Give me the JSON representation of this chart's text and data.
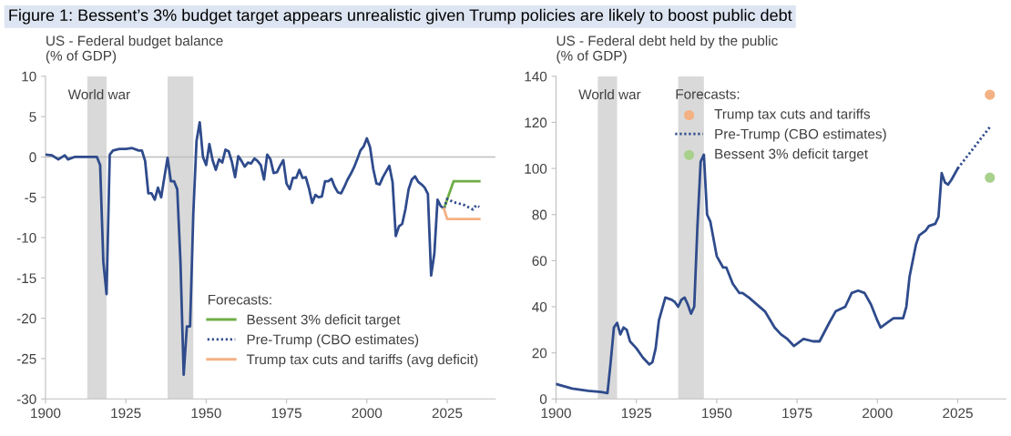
{
  "chart_data": [
    {
      "type": "line",
      "title": "Figure 1: Bessent’s 3% budget target appears unrealistic given Trump policies are likely to boost public debt",
      "ylabel": "US - Federal budget balance\n(% of GDP)",
      "legend_title": "Forecasts:",
      "legend": "bottom right",
      "xlim": [
        1900,
        2040
      ],
      "xticks": [
        1900,
        1925,
        1950,
        1975,
        2000,
        2025
      ],
      "ylim": [
        -30,
        10
      ],
      "yticks": [
        -30,
        -25,
        -20,
        -15,
        -10,
        -5,
        0,
        5,
        10
      ],
      "grid": false,
      "marker": "none",
      "bands": [
        {
          "axis": "x",
          "from": 1913,
          "to": 1919,
          "color": "#d9d9d9"
        },
        {
          "axis": "x",
          "from": 1938,
          "to": 1946,
          "color": "#d9d9d9"
        }
      ],
      "ref_lines": [
        {
          "axis": "y",
          "value": 0,
          "color": "#bfbfbf"
        }
      ],
      "annotations": [
        "World war"
      ],
      "series": [
        {
          "color": "#2f4b8c",
          "x": [
            1900,
            1902,
            1904,
            1906,
            1907,
            1909,
            1910,
            1916,
            1917,
            1918,
            1919,
            1920,
            1921,
            1923,
            1925,
            1927,
            1929,
            1930,
            1931,
            1932,
            1933,
            1934,
            1935,
            1936,
            1937,
            1938,
            1939,
            1940,
            1941,
            1942,
            1943,
            1944,
            1945,
            1946,
            1947,
            1948,
            1949,
            1950,
            1951,
            1952,
            1953,
            1954,
            1955,
            1956,
            1957,
            1958,
            1959,
            1960,
            1961,
            1962,
            1963,
            1964,
            1965,
            1966,
            1967,
            1968,
            1969,
            1970,
            1971,
            1972,
            1973,
            1974,
            1975,
            1976,
            1977,
            1978,
            1979,
            1980,
            1981,
            1982,
            1983,
            1984,
            1985,
            1986,
            1987,
            1988,
            1989,
            1990,
            1991,
            1992,
            1993,
            1994,
            1995,
            1996,
            1997,
            1998,
            1999,
            2000,
            2001,
            2002,
            2003,
            2004,
            2005,
            2006,
            2007,
            2008,
            2009,
            2010,
            2011,
            2012,
            2013,
            2014,
            2015,
            2016,
            2017,
            2018,
            2019,
            2020,
            2021,
            2022,
            2023,
            2024
          ],
          "values": [
            0.3,
            0.2,
            -0.3,
            0.2,
            -0.3,
            0,
            0,
            0,
            -1,
            -13,
            -17,
            0.3,
            0.8,
            1,
            1,
            1.1,
            0.8,
            0.8,
            -0.5,
            -4.5,
            -4.5,
            -5.3,
            -3.8,
            -5,
            -2.5,
            -0.1,
            -3,
            -3,
            -4,
            -13,
            -27,
            -21,
            -21,
            -7,
            2,
            4.3,
            0,
            -1,
            1.6,
            -0.4,
            -1.6,
            -0.3,
            -0.7,
            0.9,
            0.7,
            -0.6,
            -2.5,
            0.1,
            -0.5,
            -1.2,
            -0.7,
            -0.8,
            -0.2,
            -0.5,
            -1,
            -2.8,
            0.3,
            -0.3,
            -2,
            -1.9,
            -1.1,
            -0.4,
            -3.3,
            -4,
            -2.6,
            -2.6,
            -1.6,
            -2.6,
            -2.5,
            -3.9,
            -5.7,
            -4.7,
            -5,
            -4.9,
            -3,
            -3,
            -2.7,
            -3.7,
            -4.4,
            -4.5,
            -3.7,
            -2.8,
            -2.1,
            -1.3,
            -0.3,
            0.8,
            1.3,
            2.3,
            1.2,
            -1.5,
            -3.3,
            -3.4,
            -2.5,
            -1.8,
            -1.1,
            -3.1,
            -9.8,
            -8.6,
            -8.3,
            -6.5,
            -4,
            -2.8,
            -2.4,
            -3.1,
            -3.4,
            -3.8,
            -4.6,
            -14.7,
            -12,
            -5.3,
            -6.1,
            -6.4
          ]
        },
        {
          "name": "Bessent 3% deficit target",
          "color": "#70ad47",
          "x": [
            2024,
            2027,
            2035
          ],
          "values": [
            -6.4,
            -3,
            -3
          ]
        },
        {
          "name": "Pre-Trump (CBO estimates)",
          "color": "#2f4b8c",
          "line_style": "dotted",
          "x": [
            2024,
            2025,
            2027,
            2030,
            2033,
            2034,
            2035
          ],
          "values": [
            -6.4,
            -5.2,
            -5.6,
            -5.9,
            -6.5,
            -6,
            -6.2
          ]
        },
        {
          "name": "Trump tax cuts and tariffs (avg deficit)",
          "color": "#f4b183",
          "x": [
            2024,
            2025,
            2035
          ],
          "values": [
            -6.4,
            -7.7,
            -7.7
          ]
        }
      ]
    },
    {
      "type": "line",
      "ylabel": "US - Federal debt held by the public\n(% of GDP)",
      "legend_title": "Forecasts:",
      "legend": "top",
      "xlim": [
        1900,
        2040
      ],
      "xticks": [
        1900,
        1925,
        1950,
        1975,
        2000,
        2025
      ],
      "ylim": [
        0,
        140
      ],
      "yticks": [
        0,
        20,
        40,
        60,
        80,
        100,
        120,
        140
      ],
      "grid": false,
      "marker": "none",
      "bands": [
        {
          "axis": "x",
          "from": 1913,
          "to": 1919,
          "color": "#d9d9d9"
        },
        {
          "axis": "x",
          "from": 1938,
          "to": 1946,
          "color": "#d9d9d9"
        }
      ],
      "annotations": [
        "World war"
      ],
      "series": [
        {
          "color": "#2f4b8c",
          "x": [
            1900,
            1905,
            1910,
            1914,
            1916,
            1917,
            1918,
            1919,
            1920,
            1921,
            1922,
            1923,
            1925,
            1927,
            1929,
            1930,
            1931,
            1932,
            1934,
            1936,
            1937,
            1938,
            1939,
            1940,
            1941,
            1942,
            1943,
            1944,
            1945,
            1946,
            1947,
            1948,
            1950,
            1952,
            1953,
            1955,
            1957,
            1958,
            1960,
            1965,
            1968,
            1970,
            1972,
            1974,
            1975,
            1977,
            1980,
            1982,
            1985,
            1987,
            1990,
            1992,
            1994,
            1996,
            1998,
            2000,
            2001,
            2003,
            2005,
            2008,
            2009,
            2010,
            2012,
            2013,
            2015,
            2016,
            2018,
            2019,
            2020,
            2021,
            2022,
            2023,
            2025
          ],
          "values": [
            6.5,
            4.5,
            3.5,
            3,
            2.5,
            16,
            31,
            33,
            28,
            31,
            30,
            25,
            22,
            18,
            15,
            16,
            22,
            34,
            44,
            43,
            42,
            40,
            43,
            44,
            41,
            37,
            40,
            75,
            103,
            106,
            80,
            77,
            62,
            57,
            57,
            50,
            46,
            46,
            44,
            38,
            31,
            28,
            26,
            23,
            24,
            26,
            25,
            25,
            33,
            38,
            40,
            46,
            47,
            46,
            41,
            34,
            31,
            33,
            35,
            35,
            40,
            53,
            67,
            71,
            73,
            75,
            76,
            79,
            98,
            94,
            93,
            95,
            100
          ]
        },
        {
          "name": "Trump tax cuts and tariffs",
          "type": "scatter",
          "marker": "circle",
          "color": "#f4b183",
          "x": [
            2035
          ],
          "values": [
            132
          ]
        },
        {
          "name": "Pre-Trump (CBO estimates)",
          "color": "#2f4b8c",
          "line_style": "dotted",
          "x": [
            2025,
            2035
          ],
          "values": [
            100,
            118
          ]
        },
        {
          "name": "Bessent 3% deficit target",
          "type": "scatter",
          "marker": "circle",
          "color": "#a9d18e",
          "x": [
            2035
          ],
          "values": [
            96
          ]
        }
      ]
    }
  ]
}
